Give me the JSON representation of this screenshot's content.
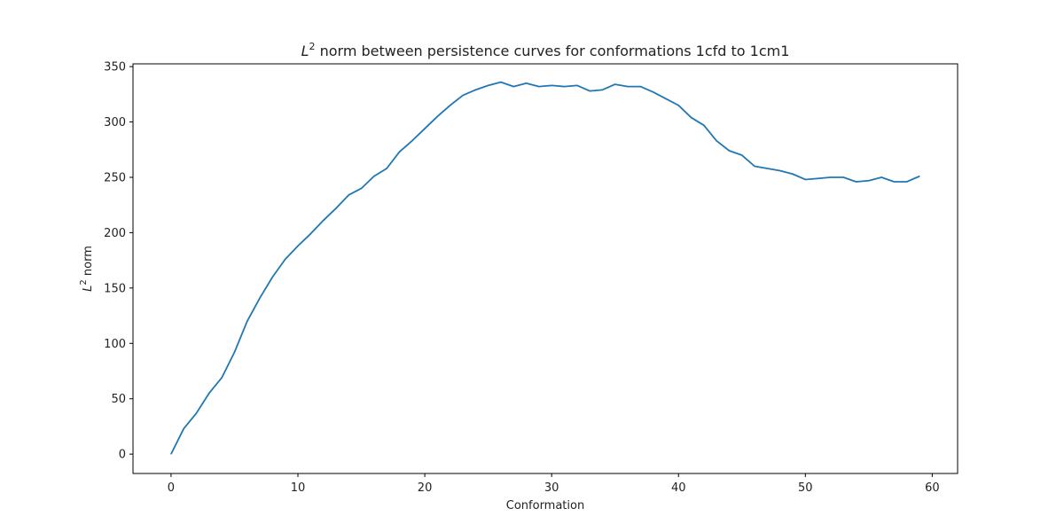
{
  "chart_data": {
    "type": "line",
    "title": {
      "main_symbol": "L",
      "main_sup": "2",
      "rest": " norm between persistence curves for conformations 1cfd to 1cm1"
    },
    "xlabel": "Conformation",
    "ylabel": {
      "symbol": "L",
      "sup": "2",
      "rest": " norm"
    },
    "xlim": [
      -3,
      62
    ],
    "ylim": [
      -17.5,
      352.5
    ],
    "xticks": [
      0,
      10,
      20,
      30,
      40,
      50,
      60
    ],
    "yticks": [
      0,
      50,
      100,
      150,
      200,
      250,
      300,
      350
    ],
    "grid": false,
    "series": [
      {
        "color": "#1f77b4",
        "x": [
          0,
          1,
          2,
          3,
          4,
          5,
          6,
          7,
          8,
          9,
          10,
          11,
          12,
          13,
          14,
          15,
          16,
          17,
          18,
          19,
          20,
          21,
          22,
          23,
          24,
          25,
          26,
          27,
          28,
          29,
          30,
          31,
          32,
          33,
          34,
          35,
          36,
          37,
          38,
          39,
          40,
          41,
          42,
          43,
          44,
          45,
          46,
          47,
          48,
          49,
          50,
          51,
          52,
          53,
          54,
          55,
          56,
          57,
          58,
          59
        ],
        "y": [
          0,
          23,
          37,
          55,
          69,
          92,
          120,
          141,
          160,
          176,
          188,
          199,
          211,
          222,
          234,
          240,
          251,
          258,
          273,
          283,
          294,
          305,
          315,
          324,
          329,
          333,
          336,
          332,
          335,
          332,
          333,
          332,
          333,
          328,
          329,
          334,
          332,
          332,
          327,
          321,
          315,
          304,
          297,
          283,
          274,
          270,
          260,
          258,
          256,
          253,
          248,
          249,
          250,
          250,
          246,
          247,
          250,
          246,
          246,
          251
        ]
      }
    ]
  }
}
